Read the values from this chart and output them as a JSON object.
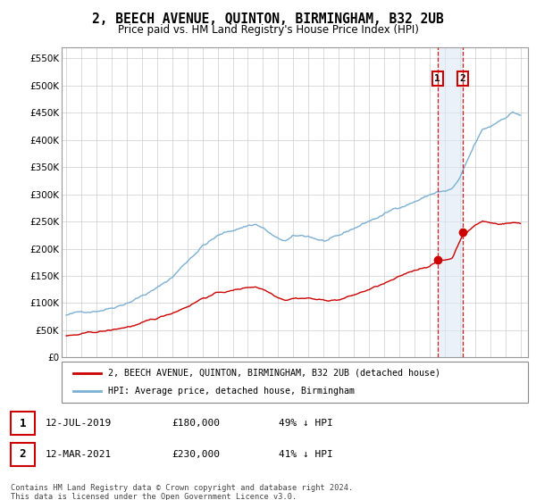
{
  "title": "2, BEECH AVENUE, QUINTON, BIRMINGHAM, B32 2UB",
  "subtitle": "Price paid vs. HM Land Registry's House Price Index (HPI)",
  "title_fontsize": 10.5,
  "subtitle_fontsize": 8.5,
  "ylim": [
    0,
    570000
  ],
  "yticks": [
    0,
    50000,
    100000,
    150000,
    200000,
    250000,
    300000,
    350000,
    400000,
    450000,
    500000,
    550000
  ],
  "ytick_labels": [
    "£0",
    "£50K",
    "£100K",
    "£150K",
    "£200K",
    "£250K",
    "£300K",
    "£350K",
    "£400K",
    "£450K",
    "£500K",
    "£550K"
  ],
  "xlim_start": 1994.7,
  "xlim_end": 2025.5,
  "hpi_color": "#7bafd4",
  "price_color": "#cc0000",
  "sale1_price": 180000,
  "sale1_year": 2019.53,
  "sale2_price": 230000,
  "sale2_year": 2021.18,
  "legend_property": "2, BEECH AVENUE, QUINTON, BIRMINGHAM, B32 2UB (detached house)",
  "legend_hpi": "HPI: Average price, detached house, Birmingham",
  "footnote": "Contains HM Land Registry data © Crown copyright and database right 2024.\nThis data is licensed under the Open Government Licence v3.0.",
  "table_row1": [
    "1",
    "12-JUL-2019",
    "£180,000",
    "49% ↓ HPI"
  ],
  "table_row2": [
    "2",
    "12-MAR-2021",
    "£230,000",
    "41% ↓ HPI"
  ]
}
